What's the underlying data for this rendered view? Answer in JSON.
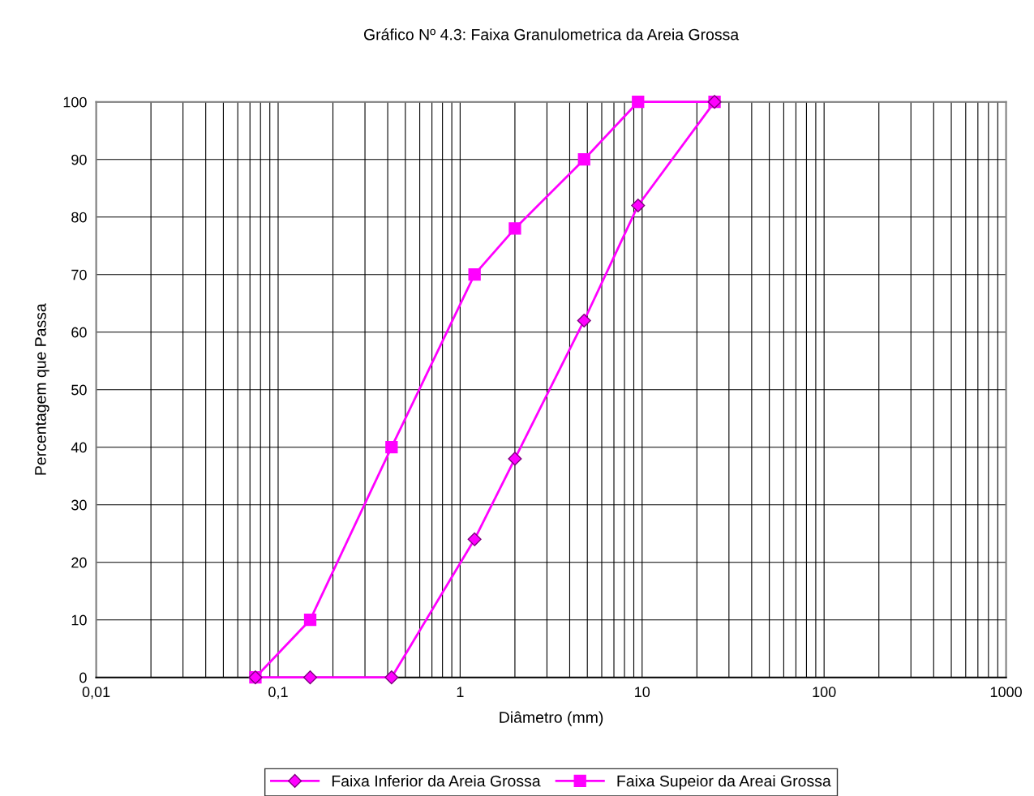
{
  "chart_data": {
    "type": "line",
    "title": "Gráfico Nº 4.3: Faixa Granulometrica da Areia Grossa",
    "xlabel": "Diâmetro (mm)",
    "ylabel": "Percentagem que Passa",
    "log": "x",
    "xlim": [
      0.01,
      1000
    ],
    "xticks": [
      {
        "value": 0.01,
        "label": "0,01"
      },
      {
        "value": 0.1,
        "label": "0,1"
      },
      1,
      10,
      100,
      1000
    ],
    "ylim": [
      0,
      100
    ],
    "yticks": [
      0,
      10,
      20,
      30,
      40,
      50,
      60,
      70,
      80,
      90,
      100
    ],
    "grid": true,
    "legend": "bottom",
    "series": [
      {
        "name": "Faixa Inferior da Areia Grossa",
        "color": "#ff00ff",
        "marker": "diamond",
        "x": [
          0.075,
          0.15,
          0.42,
          1.2,
          2.0,
          4.8,
          9.5,
          25
        ],
        "values": [
          0,
          0,
          0,
          24,
          38,
          62,
          82,
          100
        ]
      },
      {
        "name": "Faixa Supeior da Areai Grossa",
        "color": "#ff00ff",
        "marker": "square",
        "x": [
          0.075,
          0.15,
          0.42,
          1.2,
          2.0,
          4.8,
          9.5,
          25
        ],
        "values": [
          0,
          10,
          40,
          70,
          78,
          90,
          100,
          100
        ]
      }
    ]
  }
}
